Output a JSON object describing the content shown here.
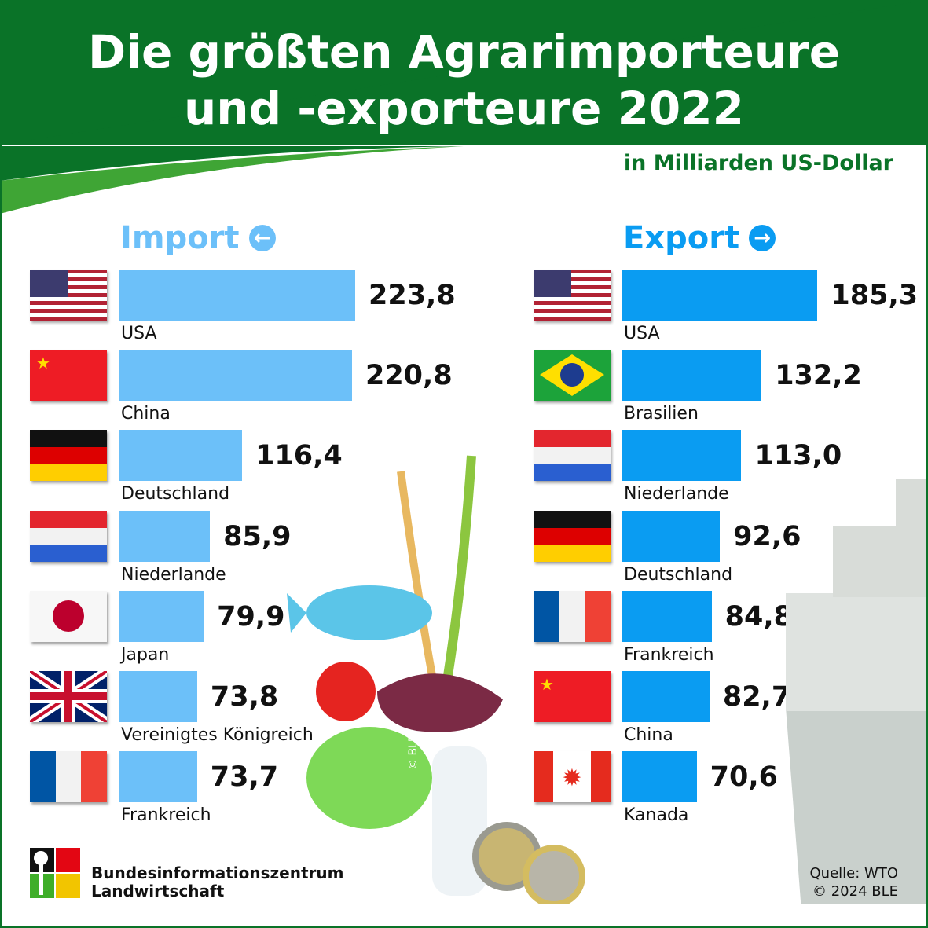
{
  "title_line1": "Die größten Agrarimporteure",
  "title_line2": "und -exporteure 2022",
  "unit": "in Milliarden US-Dollar",
  "colors": {
    "green": "#0a7328",
    "import": "#6cc0f9",
    "export": "#0a9cf2"
  },
  "chart_data": [
    {
      "type": "bar",
      "title": "Import",
      "orientation": "horizontal",
      "unit": "Mrd. US-Dollar",
      "categories": [
        "USA",
        "China",
        "Deutschland",
        "Niederlande",
        "Japan",
        "Vereinigtes Königreich",
        "Frankreich"
      ],
      "flags": [
        "us",
        "cn",
        "de",
        "nl",
        "jp",
        "gb",
        "fr"
      ],
      "values": [
        223.8,
        220.8,
        116.4,
        85.9,
        79.9,
        73.8,
        73.7
      ],
      "labels": [
        "223,8",
        "220,8",
        "116,4",
        "85,9",
        "79,9",
        "73,8",
        "73,7"
      ]
    },
    {
      "type": "bar",
      "title": "Export",
      "orientation": "horizontal",
      "unit": "Mrd. US-Dollar",
      "categories": [
        "USA",
        "Brasilien",
        "Niederlande",
        "Deutschland",
        "Frankreich",
        "China",
        "Kanada"
      ],
      "flags": [
        "us",
        "br",
        "nl",
        "de",
        "fr",
        "cn",
        "ca"
      ],
      "values": [
        185.3,
        132.2,
        113.0,
        92.6,
        84.8,
        82.7,
        70.6
      ],
      "labels": [
        "185,3",
        "132,2",
        "113,0",
        "92,6",
        "84,8",
        "82,7",
        "70,6"
      ]
    }
  ],
  "watermark": "© BLE",
  "logo": {
    "line1": "Bundesinformationszentrum",
    "line2": "Landwirtschaft"
  },
  "source": {
    "line1": "Quelle: WTO",
    "line2": "© 2024 BLE"
  }
}
